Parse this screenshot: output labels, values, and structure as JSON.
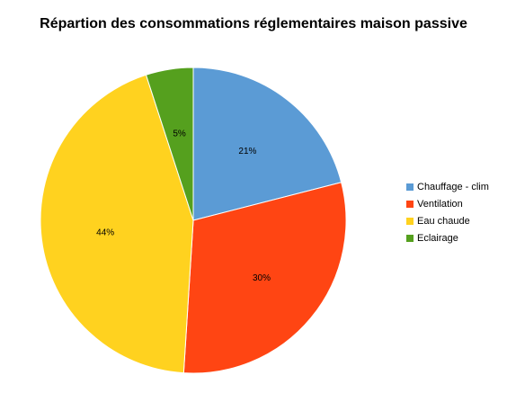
{
  "chart_data": {
    "type": "pie",
    "title": "Répartion des consommations réglementaires maison passive",
    "categories": [
      "Chauffage - clim",
      "Ventilation",
      "Eau chaude",
      "Eclairage"
    ],
    "values": [
      21,
      30,
      44,
      5
    ],
    "value_labels": [
      "21%",
      "30%",
      "44%",
      "5%"
    ],
    "colors": [
      "#5B9BD5",
      "#FF4513",
      "#FFD21F",
      "#55A01E"
    ],
    "legend_position": "right"
  }
}
